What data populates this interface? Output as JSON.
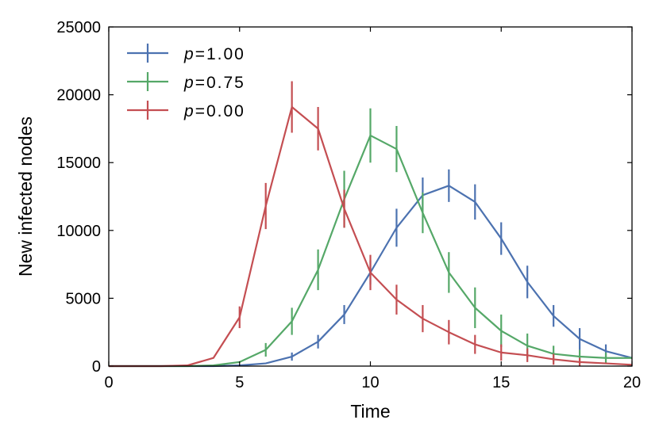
{
  "chart_data": {
    "type": "line",
    "title": "",
    "xlabel": "Time",
    "ylabel": "New infected nodes",
    "xlim": [
      0,
      20
    ],
    "ylim": [
      0,
      25000
    ],
    "xticks": [
      0,
      5,
      10,
      15,
      20
    ],
    "yticks": [
      0,
      5000,
      10000,
      15000,
      20000,
      25000
    ],
    "grid": false,
    "legend_position": "top-left",
    "x": [
      0,
      1,
      2,
      3,
      4,
      5,
      6,
      7,
      8,
      9,
      10,
      11,
      12,
      13,
      14,
      15,
      16,
      17,
      18,
      19,
      20
    ],
    "series": [
      {
        "name": "p = 1.00",
        "legend_var": "p",
        "legend_eq": "=",
        "legend_val": "1.00",
        "color": "#4c72b0",
        "values": [
          0,
          0,
          0,
          0,
          0,
          50,
          200,
          700,
          1800,
          3800,
          6900,
          10200,
          12600,
          13300,
          12100,
          9400,
          6200,
          3700,
          2000,
          1100,
          600
        ],
        "errors": [
          0,
          0,
          0,
          0,
          0,
          0,
          0,
          300,
          500,
          700,
          900,
          1400,
          1300,
          1200,
          1300,
          1200,
          1200,
          800,
          800,
          500,
          0
        ]
      },
      {
        "name": "p = 0.75",
        "legend_var": "p",
        "legend_eq": "=",
        "legend_val": "0.75",
        "color": "#55a868",
        "values": [
          0,
          0,
          0,
          0,
          50,
          300,
          1200,
          3300,
          7100,
          12300,
          17000,
          16000,
          11300,
          6900,
          4300,
          2600,
          1500,
          900,
          700,
          600,
          600
        ],
        "errors": [
          0,
          0,
          0,
          0,
          0,
          0,
          500,
          1000,
          1500,
          2100,
          2000,
          1700,
          1500,
          1500,
          1500,
          1200,
          900,
          600,
          500,
          400,
          0
        ]
      },
      {
        "name": "p = 0.00",
        "legend_var": "p",
        "legend_eq": "=",
        "legend_val": "0.00",
        "color": "#c44e52",
        "values": [
          0,
          0,
          0,
          50,
          600,
          3600,
          11800,
          19100,
          17500,
          11600,
          6900,
          4900,
          3500,
          2500,
          1600,
          1000,
          800,
          500,
          300,
          200,
          100
        ],
        "errors": [
          0,
          0,
          0,
          0,
          0,
          800,
          1700,
          1900,
          1600,
          1400,
          1300,
          1100,
          1000,
          900,
          700,
          600,
          500,
          400,
          300,
          0,
          0
        ]
      }
    ]
  }
}
